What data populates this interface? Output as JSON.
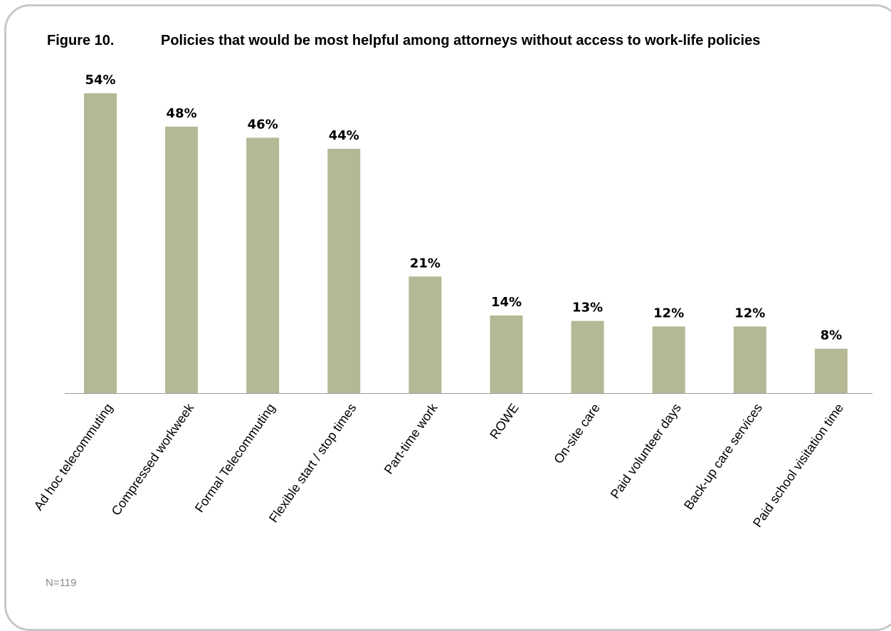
{
  "figure": {
    "label": "Figure 10.",
    "title": "Policies that would be most helpful among attorneys without access to work-life policies",
    "note": "N=119"
  },
  "colors": {
    "bar": "#b5b894",
    "axis": "#9e9e9e",
    "frame": "#c8c8c8"
  },
  "chart_data": {
    "type": "bar",
    "title": "Policies that would be most helpful among attorneys without access to work-life policies",
    "xlabel": "",
    "ylabel": "",
    "categories": [
      "Ad hoc telecommuting",
      "Compressed workweek",
      "Formal Telecommuting",
      "Flexible start / stop times",
      "Part-time work",
      "ROWE",
      "On-site care",
      "Paid volunteer days",
      "Back-up care services",
      "Paid school visitation time"
    ],
    "values": [
      54,
      48,
      46,
      44,
      21,
      14,
      13,
      12,
      12,
      8
    ],
    "value_labels": [
      "54%",
      "48%",
      "46%",
      "44%",
      "21%",
      "14%",
      "13%",
      "12%",
      "12%",
      "8%"
    ],
    "ylim": [
      0,
      54
    ],
    "unit": "%",
    "grid": false,
    "legend": "none"
  }
}
